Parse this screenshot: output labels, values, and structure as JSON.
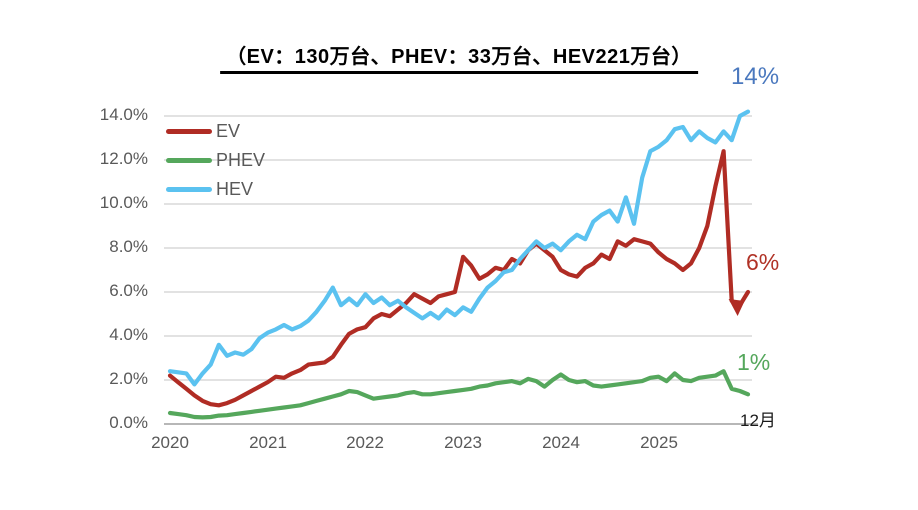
{
  "title": "（EV：130万台、PHEV：33万台、HEV221万台）",
  "legend": [
    {
      "label": "EV",
      "color": "#B02C24"
    },
    {
      "label": "PHEV",
      "color": "#55A75C"
    },
    {
      "label": "HEV",
      "color": "#5BC2F0"
    }
  ],
  "y_axis": {
    "tick_labels": [
      "14.0%",
      "12.0%",
      "10.0%",
      "8.0%",
      "6.0%",
      "4.0%",
      "2.0%",
      "0.0%"
    ],
    "min": 0,
    "max": 14,
    "step": 2,
    "grid_color": "#D9D9D9",
    "axis_color": "#B7B7B7"
  },
  "x_axis": {
    "tick_labels": [
      "2020",
      "2021",
      "2022",
      "2023",
      "2024",
      "2025"
    ]
  },
  "annotations": {
    "hev_end": {
      "text": "14%",
      "color": "#4A78BE"
    },
    "ev_end": {
      "text": "6%",
      "color": "#B03226"
    },
    "phev_end": {
      "text": "1%",
      "color": "#55A75C"
    },
    "x_end": {
      "text": "12月",
      "color": "#1A1A1A"
    },
    "ev_drop_arrow": {
      "month_index": 69.6,
      "value": 5.0
    }
  },
  "chart_data": {
    "type": "line",
    "x_start": "2020-01",
    "x_end": "2025-12",
    "x_interval": "month",
    "points_per_series": 72,
    "ylim": [
      0,
      14
    ],
    "grid": true,
    "legend_position": "top-left-inside",
    "title": "（EV：130万台、PHEV：33万台、HEV221万台）",
    "x_tick_labels": [
      "2020",
      "2021",
      "2022",
      "2023",
      "2024",
      "2025"
    ],
    "series": [
      {
        "name": "EV",
        "color": "#B02C24",
        "values": [
          2.2,
          1.9,
          1.6,
          1.3,
          1.05,
          0.9,
          0.85,
          0.95,
          1.1,
          1.3,
          1.5,
          1.7,
          1.9,
          2.15,
          2.1,
          2.3,
          2.45,
          2.7,
          2.75,
          2.8,
          3.05,
          3.6,
          4.1,
          4.3,
          4.4,
          4.8,
          5.0,
          4.9,
          5.2,
          5.5,
          5.9,
          5.7,
          5.5,
          5.8,
          5.9,
          6.0,
          7.6,
          7.2,
          6.6,
          6.8,
          7.1,
          7.0,
          7.5,
          7.3,
          7.9,
          8.2,
          7.9,
          7.6,
          7.0,
          6.8,
          6.7,
          7.1,
          7.3,
          7.7,
          7.5,
          8.3,
          8.1,
          8.4,
          8.3,
          8.2,
          7.8,
          7.5,
          7.3,
          7.0,
          7.3,
          8.0,
          9.0,
          10.8,
          12.4,
          5.6,
          5.4,
          6.0
        ]
      },
      {
        "name": "PHEV",
        "color": "#55A75C",
        "values": [
          0.5,
          0.45,
          0.4,
          0.32,
          0.3,
          0.32,
          0.38,
          0.4,
          0.45,
          0.5,
          0.55,
          0.6,
          0.65,
          0.7,
          0.75,
          0.8,
          0.85,
          0.95,
          1.05,
          1.15,
          1.25,
          1.35,
          1.5,
          1.45,
          1.3,
          1.15,
          1.2,
          1.25,
          1.3,
          1.4,
          1.45,
          1.35,
          1.35,
          1.4,
          1.45,
          1.5,
          1.55,
          1.6,
          1.7,
          1.75,
          1.85,
          1.9,
          1.95,
          1.85,
          2.05,
          1.95,
          1.7,
          2.0,
          2.25,
          2.0,
          1.9,
          1.95,
          1.75,
          1.7,
          1.75,
          1.8,
          1.85,
          1.9,
          1.95,
          2.1,
          2.15,
          1.95,
          2.3,
          2.0,
          1.95,
          2.1,
          2.15,
          2.2,
          2.4,
          1.6,
          1.5,
          1.35
        ]
      },
      {
        "name": "HEV",
        "color": "#5BC2F0",
        "values": [
          2.4,
          2.35,
          2.3,
          1.8,
          2.3,
          2.7,
          3.6,
          3.1,
          3.25,
          3.15,
          3.4,
          3.9,
          4.15,
          4.3,
          4.5,
          4.3,
          4.45,
          4.7,
          5.1,
          5.6,
          6.2,
          5.4,
          5.7,
          5.4,
          5.9,
          5.5,
          5.75,
          5.4,
          5.6,
          5.3,
          5.05,
          4.8,
          5.05,
          4.8,
          5.2,
          4.95,
          5.3,
          5.1,
          5.7,
          6.2,
          6.5,
          6.9,
          7.0,
          7.5,
          7.9,
          8.3,
          8.0,
          8.2,
          7.9,
          8.3,
          8.6,
          8.4,
          9.2,
          9.5,
          9.7,
          9.2,
          10.3,
          9.1,
          11.2,
          12.4,
          12.6,
          12.9,
          13.4,
          13.5,
          12.9,
          13.3,
          13.0,
          12.8,
          13.3,
          12.9,
          14.0,
          14.2
        ]
      }
    ]
  }
}
